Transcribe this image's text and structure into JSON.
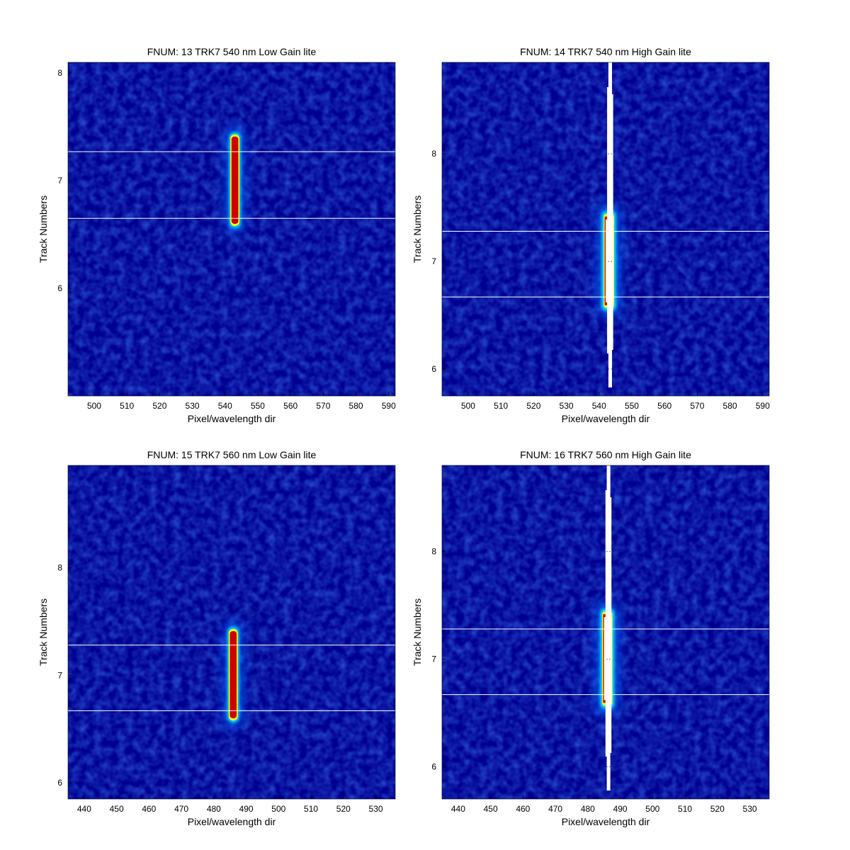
{
  "chart_data": [
    {
      "type": "heatmap",
      "title": "FNUM: 13 TRK7 540 nm Low Gain lite",
      "xlabel": "Pixel/wavelength dir",
      "ylabel": "Track Numbers",
      "xlim": [
        492,
        592
      ],
      "ylim": [
        5.0,
        8.1
      ],
      "xticks": [
        500,
        510,
        520,
        530,
        540,
        550,
        560,
        570,
        580,
        590
      ],
      "yticks": [
        6,
        7,
        8
      ],
      "hlines": [
        6.65,
        7.27
      ],
      "peak": {
        "x": 543,
        "y_min": 6.58,
        "y_max": 7.43,
        "saturated": false
      }
    },
    {
      "type": "heatmap",
      "title": "FNUM: 14 TRK7 540 nm High Gain lite",
      "xlabel": "Pixel/wavelength dir",
      "ylabel": "Track Numbers",
      "xlim": [
        492,
        592
      ],
      "ylim": [
        5.75,
        8.85
      ],
      "xticks": [
        500,
        510,
        520,
        530,
        540,
        550,
        560,
        570,
        580,
        590
      ],
      "yticks": [
        6,
        7,
        8
      ],
      "hlines": [
        6.67,
        7.28
      ],
      "peak": {
        "x": 543,
        "y_min": 6.58,
        "y_max": 7.43,
        "saturated": true
      }
    },
    {
      "type": "heatmap",
      "title": "FNUM: 15 TRK7 560 nm Low Gain lite",
      "xlabel": "Pixel/wavelength dir",
      "ylabel": "Track Numbers",
      "xlim": [
        435,
        536
      ],
      "ylim": [
        5.85,
        8.95
      ],
      "xticks": [
        440,
        450,
        460,
        470,
        480,
        490,
        500,
        510,
        520,
        530
      ],
      "yticks": [
        6,
        7,
        8
      ],
      "hlines": [
        6.67,
        7.28
      ],
      "peak": {
        "x": 486,
        "y_min": 6.58,
        "y_max": 7.43,
        "saturated": false
      }
    },
    {
      "type": "heatmap",
      "title": "FNUM: 16 TRK7 560 nm High Gain lite",
      "xlabel": "Pixel/wavelength dir",
      "ylabel": "Track Numbers",
      "xlim": [
        435,
        536
      ],
      "ylim": [
        5.7,
        8.8
      ],
      "xticks": [
        440,
        450,
        460,
        470,
        480,
        490,
        500,
        510,
        520,
        530
      ],
      "yticks": [
        6,
        7,
        8
      ],
      "hlines": [
        6.67,
        7.28
      ],
      "peak": {
        "x": 486,
        "y_min": 6.58,
        "y_max": 7.43,
        "saturated": true
      }
    }
  ],
  "colors": {
    "background": "#00008f",
    "background_noise": "#0a1fb0",
    "halo_outer": "#0066ff",
    "halo_mid": "#00e0ff",
    "halo_inner": "#ffff00",
    "core": "#cc0000",
    "hline": "#ffffff",
    "saturated": "#ffffff"
  }
}
